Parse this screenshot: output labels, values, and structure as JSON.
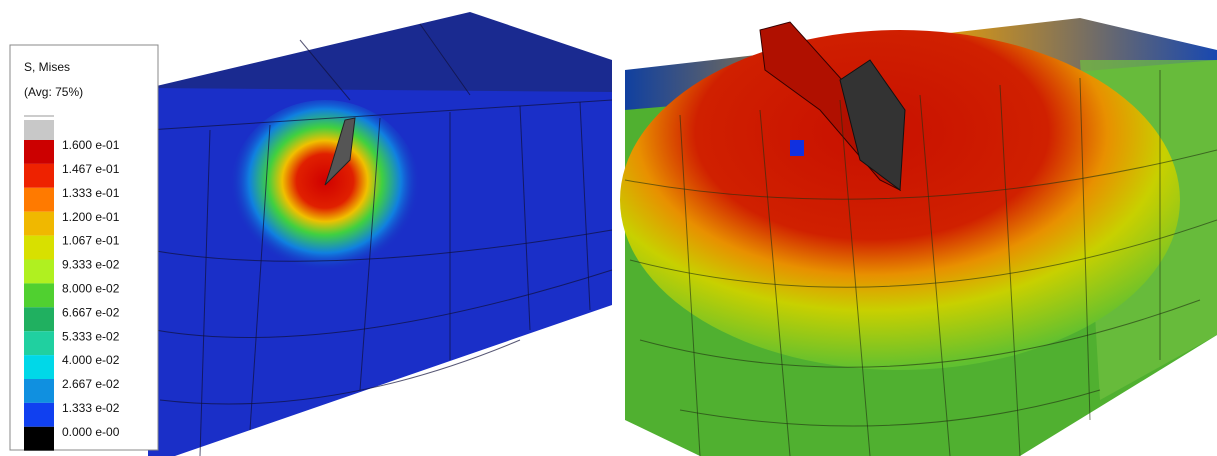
{
  "legend": {
    "title": "S, Mises",
    "subtitle": "(Avg: 75%)",
    "entries": [
      {
        "label": "1.600 e-01",
        "color": "#cc0000"
      },
      {
        "label": "1.467 e-01",
        "color": "#ee2200"
      },
      {
        "label": "1.333 e-01",
        "color": "#ff7a00"
      },
      {
        "label": "1.200 e-01",
        "color": "#f0b800"
      },
      {
        "label": "1.067 e-01",
        "color": "#d8e000"
      },
      {
        "label": "9.333 e-02",
        "color": "#b0f020"
      },
      {
        "label": "8.000 e-02",
        "color": "#50d030"
      },
      {
        "label": "6.667 e-02",
        "color": "#20b060"
      },
      {
        "label": "5.333 e-02",
        "color": "#20d0a0"
      },
      {
        "label": "4.000 e-02",
        "color": "#00d8e8"
      },
      {
        "label": "2.667 e-02",
        "color": "#1090e0"
      },
      {
        "label": "1.333 e-02",
        "color": "#1040f0"
      },
      {
        "label": "0.000 e-00",
        "color": "#000000"
      }
    ]
  }
}
